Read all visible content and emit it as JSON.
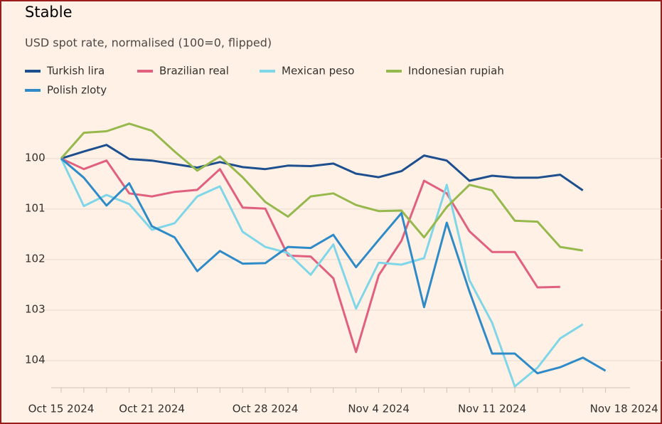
{
  "chart_data": {
    "type": "line",
    "title": "Stable",
    "subtitle": "USD spot rate, normalised (100=0, flipped)",
    "categories": [
      "Oct 15 2024",
      null,
      null,
      null,
      "Oct 21 2024",
      null,
      null,
      null,
      null,
      "Oct 28 2024",
      null,
      null,
      null,
      null,
      "Nov 4 2024",
      null,
      null,
      null,
      null,
      "Nov 11 2024",
      null,
      null,
      null,
      null,
      "Nov 18 2024"
    ],
    "series": [
      {
        "name": "Turkish lira",
        "color": "#1d4f8f",
        "values": [
          100,
          99.86,
          99.73,
          100.01,
          100.04,
          100.11,
          100.18,
          100.07,
          100.17,
          100.21,
          100.14,
          100.15,
          100.1,
          100.3,
          100.37,
          100.25,
          99.94,
          100.04,
          100.44,
          100.34,
          100.38,
          100.38,
          100.32,
          100.63,
          null
        ]
      },
      {
        "name": "Brazilian real",
        "color": "#e0607e",
        "values": [
          100,
          100.21,
          100.04,
          100.69,
          100.75,
          100.66,
          100.62,
          100.21,
          100.97,
          100.99,
          101.92,
          101.94,
          102.37,
          103.83,
          102.31,
          101.63,
          100.44,
          100.69,
          101.44,
          101.85,
          101.85,
          102.55,
          102.54,
          null,
          null
        ]
      },
      {
        "name": "Mexican peso",
        "color": "#7fd6e8",
        "values": [
          100,
          100.94,
          100.72,
          100.9,
          101.41,
          101.28,
          100.75,
          100.55,
          101.45,
          101.75,
          101.87,
          102.3,
          101.7,
          102.97,
          102.06,
          102.1,
          101.97,
          100.52,
          102.41,
          103.25,
          104.51,
          104.14,
          103.56,
          103.28,
          null
        ]
      },
      {
        "name": "Indonesian rupiah",
        "color": "#96b84c",
        "values": [
          100,
          99.49,
          99.46,
          99.31,
          99.45,
          99.86,
          100.24,
          99.96,
          100.37,
          100.86,
          101.15,
          100.75,
          100.69,
          100.92,
          101.04,
          101.03,
          101.56,
          100.96,
          100.52,
          100.63,
          101.23,
          101.25,
          101.75,
          101.82,
          null
        ]
      },
      {
        "name": "Polish zloty",
        "color": "#2e8bc8",
        "values": [
          100,
          100.38,
          100.93,
          100.49,
          101.34,
          101.56,
          102.23,
          101.83,
          102.08,
          102.07,
          101.75,
          101.77,
          101.51,
          102.15,
          101.61,
          101.08,
          102.94,
          101.27,
          102.63,
          103.86,
          103.86,
          104.25,
          104.13,
          103.94,
          104.2
        ]
      }
    ],
    "ylim": [
      99.2,
      104.5
    ],
    "yticks": [
      100,
      101,
      102,
      103,
      104
    ],
    "y_inverted": true,
    "grid": true
  }
}
